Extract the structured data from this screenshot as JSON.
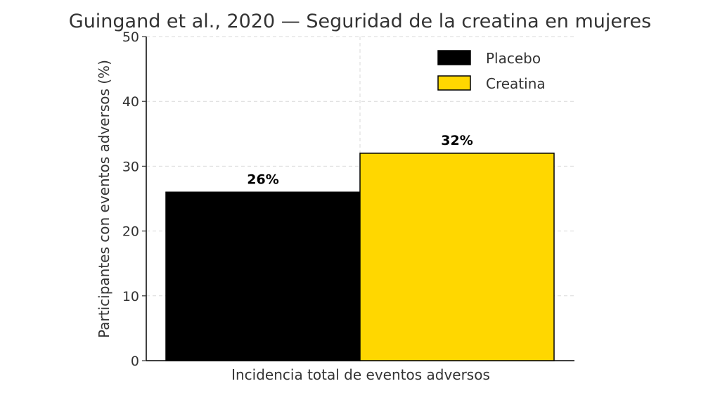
{
  "chart_data": {
    "type": "bar",
    "title": "Guingand et al., 2020 — Seguridad de la creatina en mujeres",
    "xlabel": "Incidencia total de eventos adversos",
    "ylabel": "Participantes con eventos adversos (%)",
    "ylim": [
      0,
      50
    ],
    "yticks": [
      0,
      10,
      20,
      30,
      40,
      50
    ],
    "grid": true,
    "legend_position": "top-right",
    "series": [
      {
        "name": "Placebo",
        "values": [
          26
        ],
        "data_label": "26%",
        "color": "#000000"
      },
      {
        "name": "Creatina",
        "values": [
          32
        ],
        "data_label": "32%",
        "color": "#ffd700"
      }
    ]
  }
}
